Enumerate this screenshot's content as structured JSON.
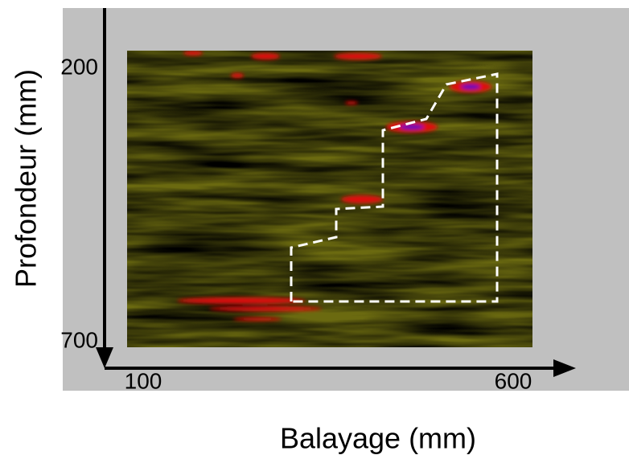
{
  "chart_data": {
    "type": "image",
    "x_label": "Balayage (mm)",
    "y_label": "Profondeur (mm)",
    "xlim": [
      100,
      600
    ],
    "ylim": [
      200,
      700
    ],
    "xticks": [
      100,
      600
    ],
    "yticks": [
      200,
      700
    ],
    "y_inverted": true
  }
}
